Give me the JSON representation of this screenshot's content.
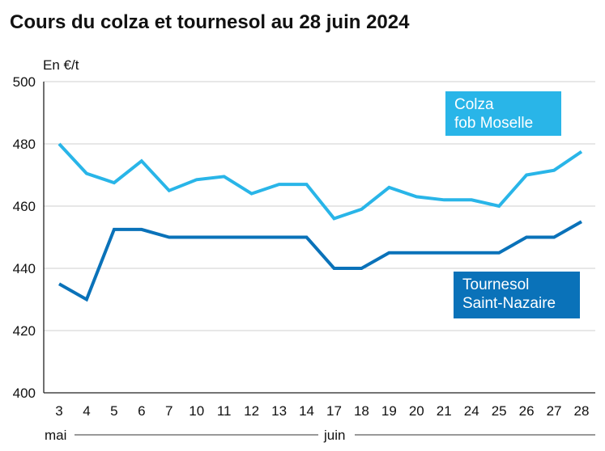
{
  "chart_data": {
    "type": "line",
    "title": "Cours du colza et tournesol au 28 juin 2024",
    "ylabel": "En €/t",
    "ylim": [
      400,
      500
    ],
    "yticks": [
      400,
      420,
      440,
      460,
      480,
      500
    ],
    "grid": true,
    "categories": [
      "3",
      "4",
      "5",
      "6",
      "7",
      "10",
      "11",
      "12",
      "13",
      "14",
      "17",
      "18",
      "19",
      "20",
      "21",
      "24",
      "25",
      "26",
      "27",
      "28"
    ],
    "month_labels": {
      "may": "mai",
      "june": "juin"
    },
    "series": [
      {
        "name": "Colza fob Moselle",
        "label_lines": [
          "Colza",
          "fob Moselle"
        ],
        "color": "#29b5e8",
        "values": [
          480,
          470.5,
          467.5,
          474.5,
          465,
          468.5,
          469.5,
          464,
          467,
          467,
          456,
          459,
          466,
          463,
          462,
          462,
          460,
          470,
          471.5,
          477.5
        ]
      },
      {
        "name": "Tournesol Saint-Nazaire",
        "label_lines": [
          "Tournesol",
          "Saint-Nazaire"
        ],
        "color": "#0a72b9",
        "values": [
          435,
          430,
          452.5,
          452.5,
          450,
          450,
          450,
          450,
          450,
          450,
          440,
          440,
          445,
          445,
          445,
          445,
          445,
          450,
          450,
          455
        ]
      }
    ]
  }
}
